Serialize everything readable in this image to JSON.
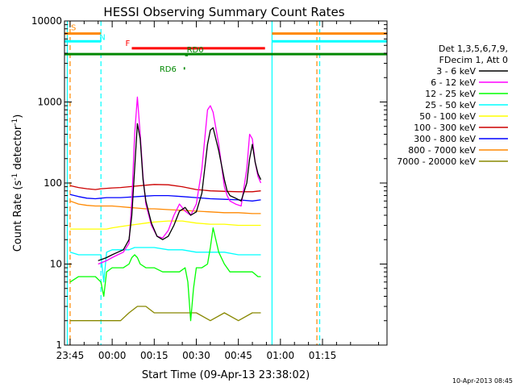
{
  "chart_data": {
    "type": "line",
    "title": "HESSI Observing Summary Count Rates",
    "xlabel": "Start Time (09-Apr-13 23:38:02)",
    "ylabel_main": "Count Rate (s",
    "ylabel_exp1": "-1",
    "ylabel_mid": " detector",
    "ylabel_exp2": "-1",
    "ylabel_end": ")",
    "yscale": "log",
    "ylim": [
      1,
      10000
    ],
    "xlim_minutes": [
      -17,
      98
    ],
    "x_unit": "minutes after 00:00 UT, 10-Apr-2013",
    "x_ticks": [
      {
        "label": "23:45",
        "minutes": -15
      },
      {
        "label": "00:00",
        "minutes": 0
      },
      {
        "label": "00:15",
        "minutes": 15
      },
      {
        "label": "00:30",
        "minutes": 30
      },
      {
        "label": "00:45",
        "minutes": 45
      },
      {
        "label": "01:00",
        "minutes": 60
      },
      {
        "label": "01:15",
        "minutes": 75
      }
    ],
    "y_ticks": [
      {
        "label": "1",
        "value": 1
      },
      {
        "label": "10",
        "value": 10
      },
      {
        "label": "100",
        "value": 100
      },
      {
        "label": "1000",
        "value": 1000
      },
      {
        "label": "10000",
        "value": 10000
      }
    ],
    "legend_header": [
      "Det 1,3,5,6,7,9,",
      "FDecim 1, Att 0"
    ],
    "series": [
      {
        "name": "3 - 6 keV",
        "color": "#000000",
        "x": [
          -5,
          -2,
          0,
          2,
          4,
          6,
          7,
          8,
          9,
          10,
          11,
          12,
          14,
          16,
          18,
          20,
          22,
          24,
          26,
          28,
          30,
          32,
          34,
          35,
          36,
          38,
          40,
          41,
          42,
          44,
          46,
          48,
          49,
          50,
          51,
          52,
          53
        ],
        "y": [
          11,
          12,
          13,
          14,
          15,
          20,
          40,
          150,
          540,
          350,
          110,
          60,
          32,
          22,
          20,
          22,
          30,
          45,
          50,
          40,
          44,
          75,
          300,
          450,
          480,
          250,
          110,
          80,
          70,
          65,
          60,
          100,
          200,
          300,
          180,
          130,
          110
        ]
      },
      {
        "name": "6 - 12 keV",
        "color": "#ff00ff",
        "x": [
          -5,
          -2,
          0,
          2,
          4,
          6,
          7,
          8,
          9,
          10,
          11,
          12,
          14,
          16,
          18,
          20,
          22,
          24,
          26,
          28,
          30,
          32,
          34,
          35,
          36,
          38,
          40,
          41,
          42,
          44,
          46,
          48,
          49,
          50,
          51,
          52,
          53
        ],
        "y": [
          10,
          11,
          12,
          13,
          14,
          18,
          60,
          400,
          1150,
          400,
          120,
          55,
          30,
          22,
          21,
          26,
          40,
          55,
          45,
          40,
          55,
          150,
          800,
          900,
          750,
          300,
          90,
          70,
          60,
          55,
          52,
          150,
          400,
          350,
          180,
          120,
          100
        ]
      },
      {
        "name": "12 - 25 keV",
        "color": "#00ff00",
        "x": [
          -15,
          -12,
          -9,
          -6,
          -4,
          -3,
          -2,
          0,
          2,
          4,
          6,
          7,
          8,
          9,
          10,
          12,
          15,
          18,
          21,
          24,
          26,
          27,
          28,
          29,
          30,
          32,
          34,
          35,
          36,
          38,
          40,
          42,
          45,
          48,
          50,
          52,
          53
        ],
        "y": [
          6,
          7,
          7,
          7,
          6,
          4,
          8,
          9,
          9,
          9,
          10,
          12,
          13,
          12,
          10,
          9,
          9,
          8,
          8,
          8,
          9,
          6,
          2,
          5,
          9,
          9,
          10,
          16,
          28,
          14,
          10,
          8,
          8,
          8,
          8,
          7,
          7
        ]
      },
      {
        "name": "25 - 50 keV",
        "color": "#00ffff",
        "x": [
          -15,
          -12,
          -9,
          -6,
          -4,
          -3,
          -2,
          0,
          2,
          4,
          6,
          8,
          10,
          15,
          20,
          25,
          30,
          35,
          40,
          45,
          50,
          53
        ],
        "y": [
          14,
          13,
          13,
          13,
          13,
          6,
          14,
          15,
          15,
          15,
          15,
          16,
          16,
          16,
          15,
          15,
          14,
          14,
          14,
          13,
          13,
          13
        ]
      },
      {
        "name": "50 - 100 keV",
        "color": "#ffff00",
        "x": [
          -15,
          -12,
          -9,
          -6,
          -4,
          -2,
          0,
          3,
          6,
          9,
          12,
          15,
          20,
          25,
          30,
          35,
          40,
          45,
          50,
          53
        ],
        "y": [
          27,
          27,
          27,
          27,
          27,
          27,
          28,
          29,
          30,
          31,
          32,
          33,
          34,
          34,
          32,
          31,
          31,
          30,
          30,
          30
        ]
      },
      {
        "name": "100 - 300 keV",
        "color": "#cc0000",
        "x": [
          -15,
          -12,
          -9,
          -6,
          -4,
          -2,
          0,
          3,
          6,
          9,
          12,
          15,
          20,
          25,
          30,
          35,
          40,
          45,
          50,
          53
        ],
        "y": [
          93,
          88,
          85,
          83,
          85,
          86,
          87,
          88,
          90,
          92,
          94,
          96,
          95,
          90,
          83,
          80,
          79,
          78,
          78,
          80
        ]
      },
      {
        "name": "300 - 800 keV",
        "color": "#0000ff",
        "x": [
          -15,
          -12,
          -9,
          -6,
          -4,
          -2,
          0,
          3,
          6,
          9,
          12,
          15,
          20,
          25,
          30,
          35,
          40,
          45,
          50,
          53
        ],
        "y": [
          72,
          68,
          65,
          64,
          65,
          66,
          66,
          66,
          67,
          68,
          69,
          70,
          70,
          68,
          66,
          64,
          63,
          62,
          60,
          62
        ]
      },
      {
        "name": "800 - 7000 keV",
        "color": "#ff8800",
        "x": [
          -15,
          -12,
          -9,
          -6,
          -4,
          -2,
          0,
          3,
          6,
          9,
          12,
          15,
          20,
          25,
          30,
          35,
          40,
          45,
          50,
          53
        ],
        "y": [
          60,
          55,
          53,
          52,
          52,
          52,
          52,
          51,
          50,
          49,
          48,
          48,
          47,
          46,
          45,
          44,
          43,
          43,
          42,
          42
        ]
      },
      {
        "name": "7000 - 20000 keV",
        "color": "#888800",
        "x": [
          -15,
          -12,
          -9,
          -6,
          -4,
          -2,
          0,
          3,
          6,
          9,
          12,
          15,
          20,
          25,
          30,
          35,
          40,
          45,
          50,
          53
        ],
        "y": [
          2,
          2,
          2,
          2,
          2,
          2,
          2,
          2,
          2.5,
          3,
          3,
          2.5,
          2.5,
          2.5,
          2.5,
          2,
          2.5,
          2,
          2.5,
          2.5
        ]
      }
    ],
    "annotations": [
      {
        "label": "S",
        "color": "#ff8800",
        "x_start": -17,
        "x_end": -4,
        "y": 7000
      },
      {
        "label": "N",
        "color": "#00ffff",
        "x_start": -17,
        "x_end": -4,
        "y": 5600
      },
      {
        "label": "F",
        "color": "#ff0000",
        "x_start": 7,
        "x_end": 54.5,
        "y": 4600
      },
      {
        "label": "RD6",
        "color": "#008800",
        "x_start": 25.5,
        "x_end": 26,
        "y": 2600
      },
      {
        "label": "RD0",
        "color": "#008800",
        "x_start": 26,
        "x_end": 27,
        "y": 3800
      },
      {
        "label": "",
        "color": "#008800",
        "x_start": -17,
        "x_end": 98,
        "y": 3900
      },
      {
        "label": "",
        "color": "#ff8800",
        "x_start": 57,
        "x_end": 98,
        "y": 7000
      },
      {
        "label": "",
        "color": "#00ffff",
        "x_start": 57,
        "x_end": 98,
        "y": 5600
      }
    ],
    "vertical_markers": [
      {
        "x": -16,
        "color": "#00ffff",
        "style": "solid"
      },
      {
        "x": -15,
        "color": "#ff8800",
        "style": "dashed"
      },
      {
        "x": -4,
        "color": "#00ffff",
        "style": "dashed"
      },
      {
        "x": 57,
        "color": "#00ffff",
        "style": "solid"
      },
      {
        "x": 73,
        "color": "#ff8800",
        "style": "dashed"
      },
      {
        "x": 74,
        "color": "#00ffff",
        "style": "dashed"
      }
    ],
    "grid": false,
    "legend_position": "right",
    "footer": "10-Apr-2013 08:45"
  }
}
